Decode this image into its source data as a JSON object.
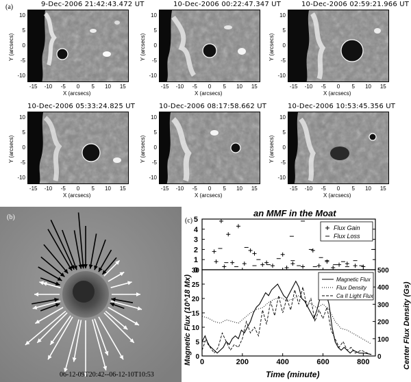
{
  "panel_a": {
    "label": "(a)",
    "frames": [
      {
        "title": "9-Dec-2006 21:42:43.472 UT"
      },
      {
        "title": "10-Dec-2006 00:22:47.347 UT"
      },
      {
        "title": "10-Dec-2006 02:59:21.966 UT"
      },
      {
        "title": "10-Dec-2006 05:33:24.825 UT"
      },
      {
        "title": "10-Dec-2006 08:17:58.662 UT"
      },
      {
        "title": "10-Dec-2006 10:53:45.356 UT"
      }
    ],
    "ylabel": "Y (arcsecs)",
    "xlabel": "X (arcsecs)",
    "yticks": [
      "10",
      "5",
      "0",
      "-5",
      "-10"
    ],
    "xticks": [
      "-15",
      "-10",
      "-5",
      "0",
      "5",
      "10",
      "15"
    ]
  },
  "panel_b": {
    "label": "(b)",
    "caption": "06-12-09T20:42--06-12-10T10:53"
  },
  "chart_data": {
    "label": "(c)",
    "title": "an MMF in the Moat",
    "type": "scatter+line",
    "top": {
      "ylim": [
        0,
        5
      ],
      "yticks": [
        "5",
        "4",
        "3",
        "2",
        "1",
        "0"
      ],
      "legend": [
        "Flux Gain",
        "Flux Loss"
      ],
      "legend_position": "top-right",
      "gain": [
        [
          95,
          4.8
        ],
        [
          180,
          4.3
        ],
        [
          130,
          3.5
        ],
        [
          60,
          1.8
        ],
        [
          240,
          1.9
        ],
        [
          260,
          1.6
        ],
        [
          400,
          1.5
        ],
        [
          550,
          1.9
        ],
        [
          70,
          0.8
        ],
        [
          150,
          0.7
        ],
        [
          210,
          0.6
        ],
        [
          300,
          0.5
        ],
        [
          350,
          0.4
        ],
        [
          450,
          0.6
        ],
        [
          500,
          0.3
        ],
        [
          620,
          0.8
        ],
        [
          680,
          0.5
        ],
        [
          720,
          0.6
        ],
        [
          760,
          0.4
        ],
        [
          110,
          0.3
        ],
        [
          320,
          0.7
        ],
        [
          420,
          0.2
        ],
        [
          580,
          0.4
        ],
        [
          650,
          0.2
        ],
        [
          800,
          0.3
        ]
      ],
      "loss": [
        [
          500,
          4.8
        ],
        [
          445,
          3.3
        ],
        [
          220,
          2.2
        ],
        [
          90,
          2.1
        ],
        [
          540,
          2.0
        ],
        [
          590,
          1.2
        ],
        [
          280,
          1.0
        ],
        [
          380,
          1.1
        ],
        [
          450,
          0.9
        ],
        [
          620,
          0.9
        ],
        [
          760,
          0.9
        ],
        [
          700,
          0.8
        ],
        [
          120,
          0.7
        ],
        [
          330,
          0.5
        ],
        [
          480,
          0.4
        ],
        [
          660,
          0.5
        ],
        [
          790,
          0.4
        ],
        [
          850,
          2.0
        ],
        [
          170,
          0.3
        ],
        [
          260,
          0.4
        ],
        [
          560,
          0.3
        ],
        [
          720,
          0.3
        ]
      ]
    },
    "bottom": {
      "xlabel": "Time (minute)",
      "ylabel_left": "Magnetic Flux (10^18 Mx)",
      "ylabel_right": "Center Flux Density (Gs)",
      "xlim": [
        0,
        860
      ],
      "ylim_left": [
        0,
        30
      ],
      "ylim_right": [
        0,
        500
      ],
      "xticks": [
        "0",
        "200",
        "400",
        "600",
        "800"
      ],
      "yticks_left": [
        "30",
        "25",
        "20",
        "15",
        "10",
        "5",
        "0"
      ],
      "yticks_right": [
        "500",
        "400",
        "300",
        "200",
        "100",
        "0"
      ],
      "legend": [
        "Magnetic Flux",
        "Flux Density",
        "Ca II Light Flux"
      ],
      "legend_position": "top-right",
      "magnetic_flux": [
        [
          0,
          5
        ],
        [
          15,
          7
        ],
        [
          30,
          4
        ],
        [
          45,
          3
        ],
        [
          60,
          2
        ],
        [
          75,
          1
        ],
        [
          90,
          2
        ],
        [
          105,
          3
        ],
        [
          120,
          5
        ],
        [
          135,
          4
        ],
        [
          150,
          6
        ],
        [
          165,
          7
        ],
        [
          180,
          6
        ],
        [
          195,
          9
        ],
        [
          210,
          8
        ],
        [
          225,
          10
        ],
        [
          240,
          12
        ],
        [
          255,
          15
        ],
        [
          270,
          17
        ],
        [
          285,
          18
        ],
        [
          300,
          20
        ],
        [
          315,
          22
        ],
        [
          330,
          21
        ],
        [
          345,
          23
        ],
        [
          360,
          24
        ],
        [
          375,
          25
        ],
        [
          390,
          23
        ],
        [
          405,
          21
        ],
        [
          420,
          20
        ],
        [
          435,
          22
        ],
        [
          450,
          24
        ],
        [
          465,
          26
        ],
        [
          480,
          24
        ],
        [
          495,
          20
        ],
        [
          510,
          19
        ],
        [
          525,
          17
        ],
        [
          540,
          15
        ],
        [
          555,
          13
        ],
        [
          570,
          16
        ],
        [
          585,
          20
        ],
        [
          600,
          23
        ],
        [
          615,
          22
        ],
        [
          630,
          18
        ],
        [
          645,
          10
        ],
        [
          660,
          5
        ],
        [
          675,
          3
        ],
        [
          690,
          2
        ],
        [
          705,
          3
        ],
        [
          720,
          2
        ],
        [
          735,
          1
        ],
        [
          750,
          2
        ],
        [
          780,
          1
        ],
        [
          810,
          1
        ],
        [
          840,
          0.5
        ]
      ],
      "flux_density": [
        [
          0,
          230
        ],
        [
          30,
          220
        ],
        [
          60,
          200
        ],
        [
          90,
          190
        ],
        [
          120,
          210
        ],
        [
          150,
          200
        ],
        [
          180,
          190
        ],
        [
          210,
          220
        ],
        [
          240,
          250
        ],
        [
          270,
          270
        ],
        [
          300,
          280
        ],
        [
          330,
          310
        ],
        [
          360,
          330
        ],
        [
          390,
          340
        ],
        [
          420,
          320
        ],
        [
          450,
          330
        ],
        [
          480,
          350
        ],
        [
          510,
          320
        ],
        [
          540,
          300
        ],
        [
          570,
          280
        ],
        [
          600,
          300
        ],
        [
          630,
          270
        ],
        [
          660,
          200
        ],
        [
          690,
          160
        ],
        [
          720,
          150
        ],
        [
          750,
          130
        ],
        [
          780,
          110
        ],
        [
          810,
          90
        ],
        [
          840,
          70
        ]
      ],
      "ca_flux": [
        [
          0,
          2
        ],
        [
          20,
          6
        ],
        [
          40,
          3
        ],
        [
          60,
          1
        ],
        [
          80,
          3
        ],
        [
          100,
          8
        ],
        [
          120,
          5
        ],
        [
          140,
          2
        ],
        [
          160,
          4
        ],
        [
          180,
          3
        ],
        [
          200,
          6
        ],
        [
          220,
          12
        ],
        [
          240,
          8
        ],
        [
          260,
          10
        ],
        [
          280,
          7
        ],
        [
          300,
          16
        ],
        [
          320,
          11
        ],
        [
          340,
          19
        ],
        [
          360,
          14
        ],
        [
          380,
          21
        ],
        [
          400,
          15
        ],
        [
          420,
          20
        ],
        [
          440,
          16
        ],
        [
          460,
          23
        ],
        [
          480,
          18
        ],
        [
          500,
          24
        ],
        [
          520,
          17
        ],
        [
          540,
          20
        ],
        [
          560,
          12
        ],
        [
          580,
          16
        ],
        [
          600,
          13
        ],
        [
          620,
          17
        ],
        [
          640,
          9
        ],
        [
          660,
          6
        ],
        [
          680,
          3
        ],
        [
          700,
          5
        ],
        [
          720,
          2
        ],
        [
          740,
          3
        ],
        [
          760,
          1
        ],
        [
          790,
          2
        ],
        [
          820,
          1
        ],
        [
          840,
          0.5
        ]
      ]
    }
  }
}
